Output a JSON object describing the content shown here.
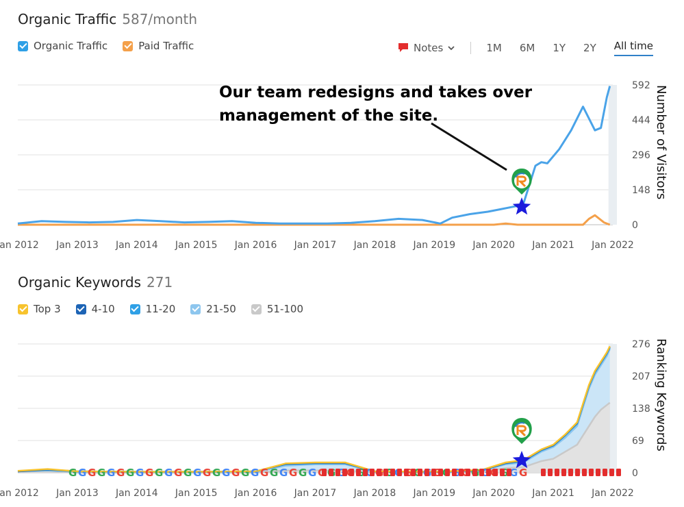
{
  "traffic": {
    "title": "Organic Traffic",
    "metric": "587/month",
    "legend": [
      {
        "label": "Organic Traffic",
        "color": "#2fa0e6"
      },
      {
        "label": "Paid Traffic",
        "color": "#f4a04a"
      }
    ],
    "notes_label": "Notes",
    "ranges": [
      "1M",
      "6M",
      "1Y",
      "2Y",
      "All time"
    ],
    "annotation_line1": "Our team redesigns and takes over",
    "annotation_line2": "management of the site.",
    "ylabel": "Number of Visitors"
  },
  "keywords": {
    "title": "Organic Keywords",
    "metric": "271",
    "legend": [
      {
        "label": "Top 3",
        "color": "#f7c32e"
      },
      {
        "label": "4-10",
        "color": "#1d64b5"
      },
      {
        "label": "11-20",
        "color": "#2fa0e6"
      },
      {
        "label": "21-50",
        "color": "#8dc6ee"
      },
      {
        "label": "51-100",
        "color": "#c9c9c9"
      }
    ],
    "ylabel": "Ranking Keywords"
  },
  "chart_data": [
    {
      "type": "line",
      "title": "Organic Traffic",
      "xlabel": "",
      "ylabel": "Number of Visitors",
      "x_ticks": [
        "Jan 2012",
        "Jan 2013",
        "Jan 2014",
        "Jan 2015",
        "Jan 2016",
        "Jan 2017",
        "Jan 2018",
        "Jan 2019",
        "Jan 2020",
        "Jan 2021",
        "Jan 2022"
      ],
      "y_ticks": [
        0,
        148,
        296,
        444,
        592
      ],
      "ylim": [
        0,
        592
      ],
      "grid": true,
      "series": [
        {
          "name": "Organic Traffic",
          "color": "#4aa3e8",
          "x": [
            2012.0,
            2012.4,
            2012.8,
            2013.2,
            2013.6,
            2014.0,
            2014.4,
            2014.8,
            2015.2,
            2015.6,
            2016.0,
            2016.4,
            2016.8,
            2017.2,
            2017.6,
            2018.0,
            2018.4,
            2018.8,
            2019.1,
            2019.3,
            2019.6,
            2019.9,
            2020.1,
            2020.3,
            2020.4,
            2020.5,
            2020.7,
            2020.8,
            2020.9,
            2021.1,
            2021.3,
            2021.5,
            2021.7,
            2021.8,
            2021.9,
            2021.95
          ],
          "y": [
            5,
            15,
            12,
            10,
            12,
            20,
            15,
            10,
            12,
            15,
            8,
            5,
            5,
            5,
            8,
            15,
            25,
            20,
            5,
            30,
            45,
            55,
            65,
            75,
            80,
            90,
            250,
            265,
            260,
            320,
            400,
            500,
            400,
            410,
            540,
            587
          ]
        },
        {
          "name": "Paid Traffic",
          "color": "#f4a04a",
          "x": [
            2012.0,
            2020.0,
            2020.2,
            2020.4,
            2021.5,
            2021.6,
            2021.7,
            2021.85,
            2021.95
          ],
          "y": [
            0,
            0,
            5,
            0,
            0,
            25,
            40,
            10,
            0
          ]
        }
      ]
    },
    {
      "type": "area",
      "title": "Organic Keywords",
      "xlabel": "",
      "ylabel": "Ranking Keywords",
      "x_ticks": [
        "Jan 2012",
        "Jan 2013",
        "Jan 2014",
        "Jan 2015",
        "Jan 2016",
        "Jan 2017",
        "Jan 2018",
        "Jan 2019",
        "Jan 2020",
        "Jan 2021",
        "Jan 2022"
      ],
      "y_ticks": [
        0,
        69,
        138,
        207,
        276
      ],
      "ylim": [
        0,
        276
      ],
      "grid": true,
      "x": [
        2012.0,
        2012.5,
        2013.0,
        2014.0,
        2015.0,
        2016.0,
        2016.5,
        2017.0,
        2017.5,
        2018.0,
        2019.0,
        2019.8,
        2020.2,
        2020.5,
        2020.8,
        2021.0,
        2021.2,
        2021.4,
        2021.5,
        2021.6,
        2021.7,
        2021.8,
        2021.9,
        2021.95
      ],
      "series": [
        {
          "name": "51-100",
          "color": "#c9c9c9",
          "values": [
            2,
            3,
            0,
            0,
            0,
            0,
            5,
            5,
            5,
            0,
            0,
            2,
            10,
            12,
            25,
            30,
            45,
            60,
            80,
            100,
            120,
            135,
            145,
            150
          ]
        },
        {
          "name": "21-50",
          "color": "#8dc6ee",
          "values": [
            3,
            5,
            2,
            1,
            1,
            2,
            15,
            18,
            18,
            2,
            1,
            4,
            18,
            22,
            45,
            55,
            75,
            100,
            140,
            180,
            210,
            230,
            250,
            265
          ]
        },
        {
          "name": "11-20",
          "color": "#2fa0e6",
          "values": [
            3,
            6,
            3,
            2,
            2,
            3,
            18,
            20,
            20,
            3,
            2,
            5,
            20,
            25,
            48,
            58,
            80,
            105,
            145,
            185,
            215,
            235,
            255,
            268
          ]
        },
        {
          "name": "4-10",
          "color": "#1d64b5",
          "values": [
            3,
            7,
            3,
            2,
            2,
            3,
            19,
            21,
            21,
            3,
            2,
            5,
            21,
            26,
            49,
            59,
            81,
            107,
            147,
            187,
            217,
            237,
            257,
            270
          ]
        },
        {
          "name": "Top 3",
          "color": "#f7c32e",
          "values": [
            4,
            8,
            3,
            2,
            2,
            3,
            20,
            22,
            22,
            3,
            2,
            6,
            22,
            27,
            50,
            60,
            82,
            108,
            148,
            188,
            218,
            238,
            258,
            271
          ]
        }
      ]
    }
  ]
}
